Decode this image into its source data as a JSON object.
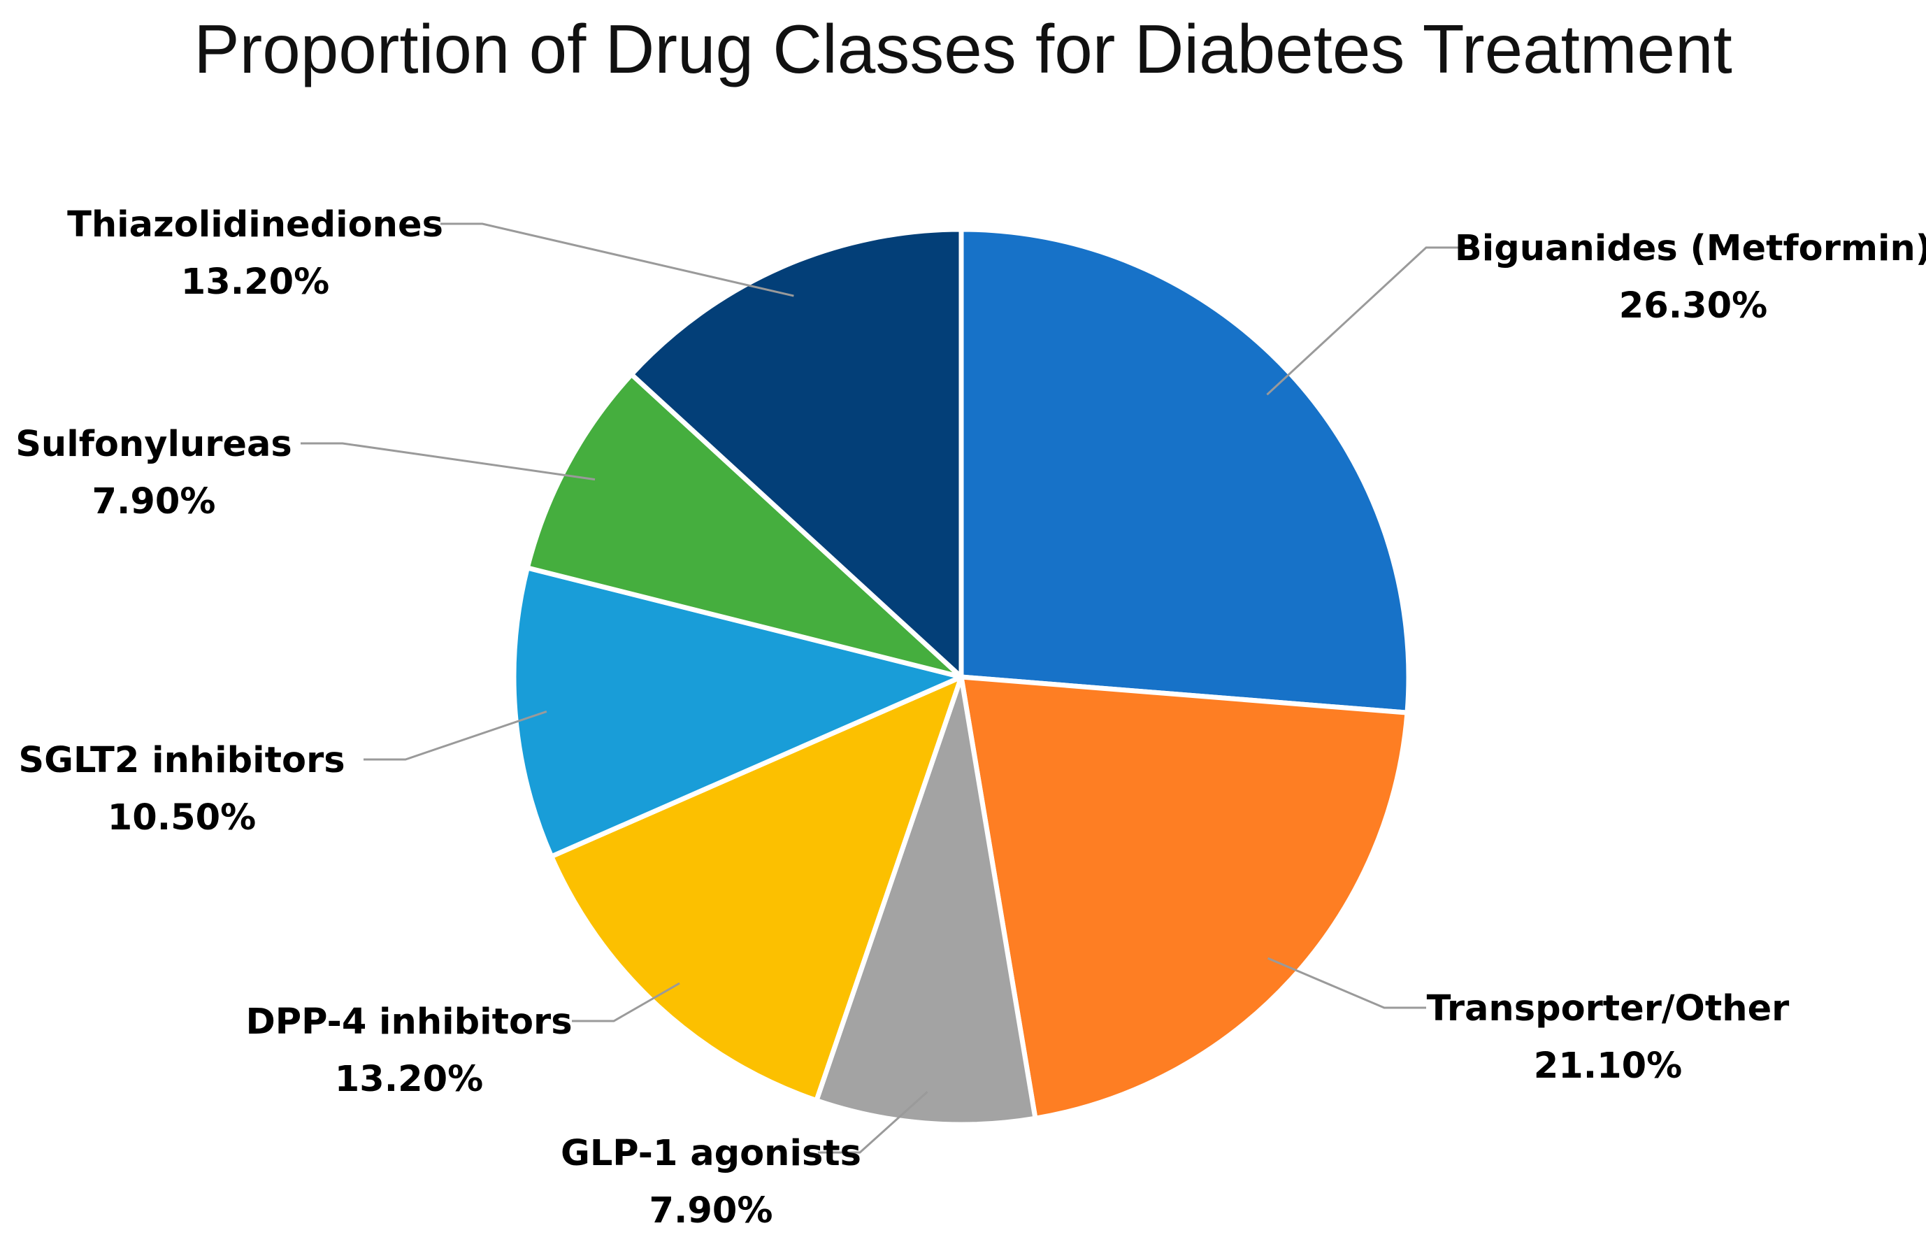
{
  "chart_data": {
    "type": "pie",
    "title": "Proportion of Drug Classes for Diabetes Treatment",
    "slices": [
      {
        "name": "Biguanides (Metformin)",
        "value": 26.3,
        "label_value": "26.30%",
        "color": "#1772C8"
      },
      {
        "name": "Transporter/Other",
        "value": 21.1,
        "label_value": "21.10%",
        "color": "#FE7E23"
      },
      {
        "name": "GLP-1 agonists",
        "value": 7.9,
        "label_value": "7.90%",
        "color": "#A3A3A3"
      },
      {
        "name": "DPP-4 inhibitors",
        "value": 13.2,
        "label_value": "13.20%",
        "color": "#FCC000"
      },
      {
        "name": "SGLT2 inhibitors",
        "value": 10.5,
        "label_value": "10.50%",
        "color": "#199DD8"
      },
      {
        "name": "Sulfonylureas",
        "value": 7.9,
        "label_value": "7.90%",
        "color": "#45AE3E"
      },
      {
        "name": "Thiazolidinediones",
        "value": 13.2,
        "label_value": "13.20%",
        "color": "#033F78"
      }
    ],
    "start_angle": "12 o'clock",
    "direction": "clockwise",
    "legend": "none",
    "data_labels": "outside with leader lines"
  }
}
